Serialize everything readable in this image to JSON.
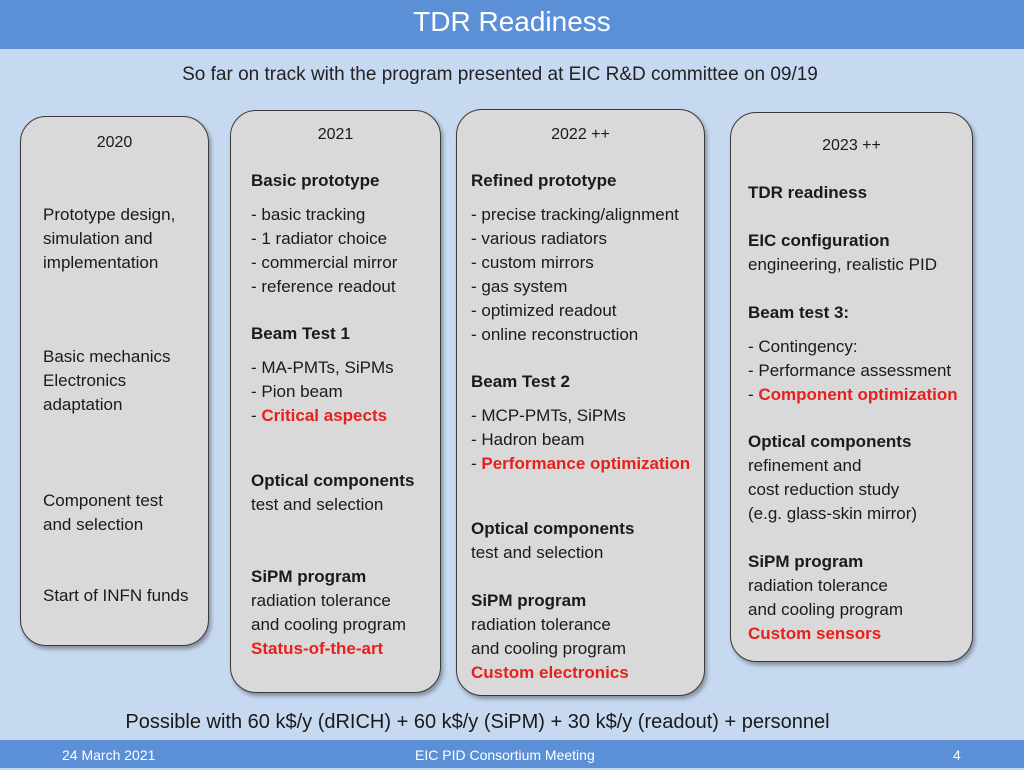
{
  "header": {
    "title": "TDR Readiness"
  },
  "subtitle": "So far on track with the program presented at EIC R&D committee on 09/19",
  "col2020": {
    "year": "2020",
    "a1": "Prototype design,",
    "a2": "simulation and",
    "a3": "implementation",
    "b1": "Basic mechanics",
    "b2": "Electronics",
    "b3": "adaptation",
    "c1": "Component test",
    "c2": "and selection",
    "d1": "Start of INFN funds"
  },
  "col2021": {
    "year": "2021",
    "proto_title": "Basic prototype",
    "p1": "- basic tracking",
    "p2": "- 1 radiator choice",
    "p3": "- commercial mirror",
    "p4": "- reference readout",
    "beam_title": "Beam Test 1",
    "bt1": "- MA-PMTs, SiPMs",
    "bt2": "- Pion beam",
    "bt3_prefix": "- ",
    "bt3_red": "Critical aspects",
    "opt_title": "Optical components",
    "opt1": "test  and selection",
    "sipm_title": "SiPM program",
    "sipm1": "radiation tolerance",
    "sipm2": "and cooling program",
    "sipm_red": "Status-of-the-art"
  },
  "col2022": {
    "year": "2022 ++",
    "proto_title": "Refined prototype",
    "p1": "- precise tracking/alignment",
    "p2": "- various radiators",
    "p3": "- custom mirrors",
    "p4": "- gas system",
    "p5": "- optimized readout",
    "p6": "- online reconstruction",
    "beam_title": "Beam Test 2",
    "bt1": "- MCP-PMTs, SiPMs",
    "bt2": "- Hadron beam",
    "bt3_prefix": "- ",
    "bt3_red": "Performance optimization",
    "opt_title": "Optical components",
    "opt1": "test  and selection",
    "sipm_title": "SiPM program",
    "sipm1": "radiation tolerance",
    "sipm2": "and cooling program",
    "sipm_red": "Custom electronics"
  },
  "col2023": {
    "year": "2023 ++",
    "tdr_title": "TDR readiness",
    "eic_title": "EIC configuration",
    "eic1": "engineering, realistic PID",
    "beam_title": "Beam test 3:",
    "bt1": "- Contingency:",
    "bt2": "- Performance assessment",
    "bt3_prefix": "- ",
    "bt3_red": "Component optimization",
    "opt_title": "Optical components",
    "opt1": "refinement and",
    "opt2": "cost reduction study",
    "opt3": "(e.g. glass-skin mirror)",
    "sipm_title": "SiPM program",
    "sipm1": "radiation tolerance",
    "sipm2": "and cooling program",
    "sipm_red": "Custom sensors"
  },
  "footer_note": "Possible with 60 k$/y (dRICH) + 60 k$/y (SiPM) + 30 k$/y (readout) + personnel",
  "footer": {
    "date": "24 March 2021",
    "event": "EIC PID Consortium Meeting",
    "page": "4"
  }
}
